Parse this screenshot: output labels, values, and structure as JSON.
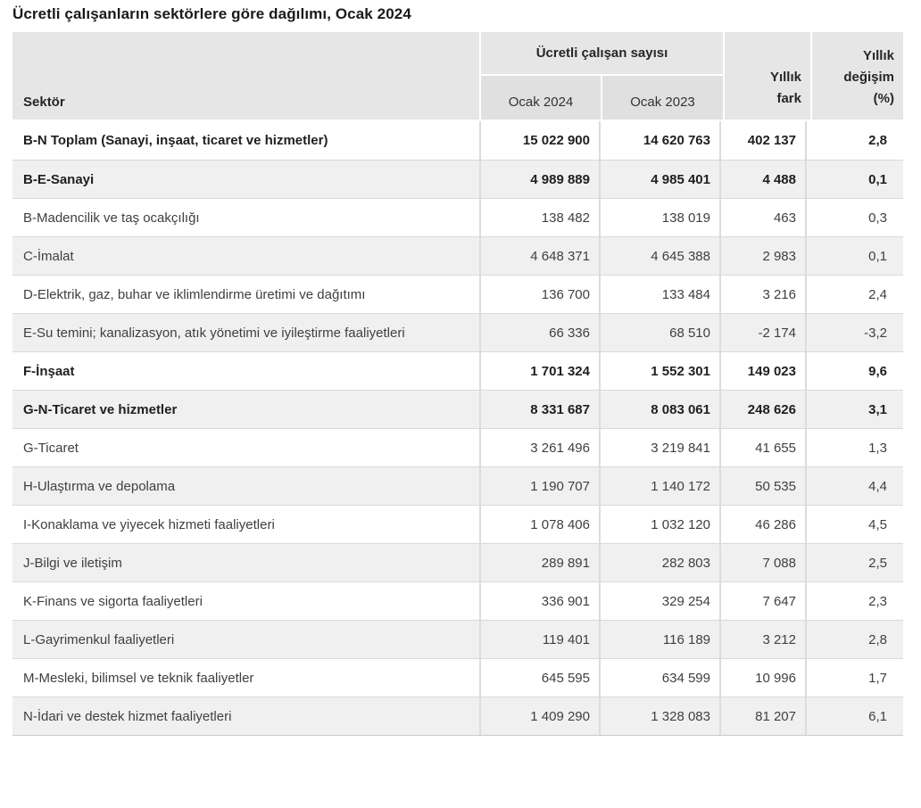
{
  "title": "Ücretli çalışanların sektörlere göre dağılımı, Ocak 2024",
  "table": {
    "headers": {
      "sector": "Sektör",
      "group": "Ücretli çalışan sayısı",
      "col_current": "Ocak 2024",
      "col_previous": "Ocak 2023",
      "col_diff": "Yıllık fark",
      "col_change": "Yıllık değişim (%)"
    },
    "rows": [
      {
        "label": "B-N Toplam (Sanayi, inşaat, ticaret ve hizmetler)",
        "ocak_2024": "15 022 900",
        "ocak_2023": "14 620 763",
        "yillik_fark": "402 137",
        "yillik_degisim": "2,8",
        "bold": true
      },
      {
        "label": "B-E-Sanayi",
        "ocak_2024": "4 989 889",
        "ocak_2023": "4 985 401",
        "yillik_fark": "4 488",
        "yillik_degisim": "0,1",
        "bold": true
      },
      {
        "label": "B-Madencilik ve taş ocakçılığı",
        "ocak_2024": "138 482",
        "ocak_2023": "138 019",
        "yillik_fark": "463",
        "yillik_degisim": "0,3",
        "bold": false
      },
      {
        "label": "C-İmalat",
        "ocak_2024": "4 648 371",
        "ocak_2023": "4 645 388",
        "yillik_fark": "2 983",
        "yillik_degisim": "0,1",
        "bold": false
      },
      {
        "label": "D-Elektrik, gaz, buhar ve iklimlendirme üretimi ve dağıtımı",
        "ocak_2024": "136 700",
        "ocak_2023": "133 484",
        "yillik_fark": "3 216",
        "yillik_degisim": "2,4",
        "bold": false
      },
      {
        "label": "E-Su temini; kanalizasyon, atık yönetimi ve iyileştirme faaliyetleri",
        "ocak_2024": "66 336",
        "ocak_2023": "68 510",
        "yillik_fark": "-2 174",
        "yillik_degisim": "-3,2",
        "bold": false
      },
      {
        "label": "F-İnşaat",
        "ocak_2024": "1 701 324",
        "ocak_2023": "1 552 301",
        "yillik_fark": "149 023",
        "yillik_degisim": "9,6",
        "bold": true
      },
      {
        "label": "G-N-Ticaret ve hizmetler",
        "ocak_2024": "8 331 687",
        "ocak_2023": "8 083 061",
        "yillik_fark": "248 626",
        "yillik_degisim": "3,1",
        "bold": true
      },
      {
        "label": "G-Ticaret",
        "ocak_2024": "3 261 496",
        "ocak_2023": "3 219 841",
        "yillik_fark": "41 655",
        "yillik_degisim": "1,3",
        "bold": false
      },
      {
        "label": "H-Ulaştırma ve depolama",
        "ocak_2024": "1 190 707",
        "ocak_2023": "1 140 172",
        "yillik_fark": "50 535",
        "yillik_degisim": "4,4",
        "bold": false
      },
      {
        "label": "I-Konaklama ve yiyecek hizmeti faaliyetleri",
        "ocak_2024": "1 078 406",
        "ocak_2023": "1 032 120",
        "yillik_fark": "46 286",
        "yillik_degisim": "4,5",
        "bold": false
      },
      {
        "label": "J-Bilgi ve iletişim",
        "ocak_2024": "289 891",
        "ocak_2023": "282 803",
        "yillik_fark": "7 088",
        "yillik_degisim": "2,5",
        "bold": false
      },
      {
        "label": "K-Finans ve sigorta faaliyetleri",
        "ocak_2024": "336 901",
        "ocak_2023": "329 254",
        "yillik_fark": "7 647",
        "yillik_degisim": "2,3",
        "bold": false
      },
      {
        "label": "L-Gayrimenkul faaliyetleri",
        "ocak_2024": "119 401",
        "ocak_2023": "116 189",
        "yillik_fark": "3 212",
        "yillik_degisim": "2,8",
        "bold": false
      },
      {
        "label": "M-Mesleki, bilimsel ve teknik faaliyetler",
        "ocak_2024": "645 595",
        "ocak_2023": "634 599",
        "yillik_fark": "10 996",
        "yillik_degisim": "1,7",
        "bold": false
      },
      {
        "label": "N-İdari ve destek hizmet faaliyetleri",
        "ocak_2024": "1 409 290",
        "ocak_2023": "1 328 083",
        "yillik_fark": "81 207",
        "yillik_degisim": "6,1",
        "bold": false
      }
    ]
  },
  "colors": {
    "header_bg": "#e6e6e6",
    "subheader_bg": "#e0e0e0",
    "stripe_bg": "#f0f0f0",
    "grid_line": "#d9d9d9",
    "text": "#3f3f3f",
    "text_bold": "#1f1f1f"
  }
}
